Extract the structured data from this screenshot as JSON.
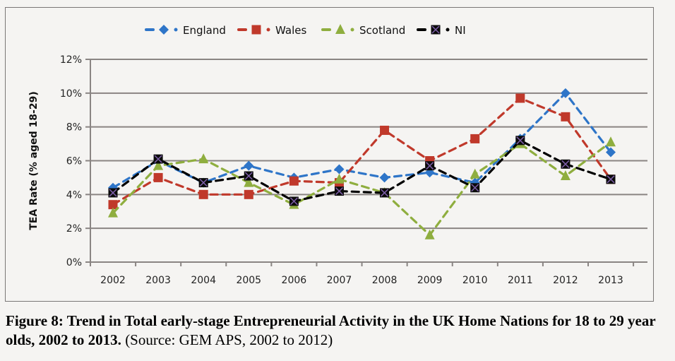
{
  "chart_data": {
    "type": "line",
    "title": "",
    "xlabel": "",
    "ylabel": "TEA Rate (% aged 18-29)",
    "ylim": [
      0,
      12
    ],
    "yticks": [
      "0%",
      "2%",
      "4%",
      "6%",
      "8%",
      "10%",
      "12%"
    ],
    "ytick_values": [
      0,
      2,
      4,
      6,
      8,
      10,
      12
    ],
    "grid": true,
    "legend_position": "top",
    "categories": [
      "2002",
      "2003",
      "2004",
      "2005",
      "2006",
      "2007",
      "2008",
      "2009",
      "2010",
      "2011",
      "2012",
      "2013"
    ],
    "series": [
      {
        "name": "England",
        "color": "#2e75c8",
        "marker": "diamond",
        "values": [
          4.4,
          6.0,
          4.7,
          5.7,
          5.0,
          5.5,
          5.0,
          5.3,
          4.7,
          7.3,
          10.0,
          6.5
        ]
      },
      {
        "name": "Wales",
        "color": "#c0392b",
        "marker": "square",
        "values": [
          3.4,
          5.0,
          4.0,
          4.0,
          4.8,
          4.7,
          7.8,
          6.0,
          7.3,
          9.7,
          8.6,
          4.9
        ]
      },
      {
        "name": "Scotland",
        "color": "#8fae3f",
        "marker": "triangle",
        "values": [
          2.9,
          5.7,
          6.1,
          4.7,
          3.4,
          4.9,
          4.1,
          1.6,
          5.2,
          7.0,
          5.1,
          7.1
        ]
      },
      {
        "name": "NI",
        "color": "#000000",
        "marker": "x-square",
        "values": [
          4.1,
          6.1,
          4.7,
          5.1,
          3.6,
          4.2,
          4.1,
          5.7,
          4.4,
          7.2,
          5.8,
          4.9
        ]
      }
    ]
  },
  "caption": {
    "bold": "Figure 8: Trend in Total early-stage Entrepreneurial Activity in the UK Home Nations for 18 to 29 year olds, 2002 to 2013.",
    "normal": " (Source: GEM APS, 2002 to 2012)"
  }
}
